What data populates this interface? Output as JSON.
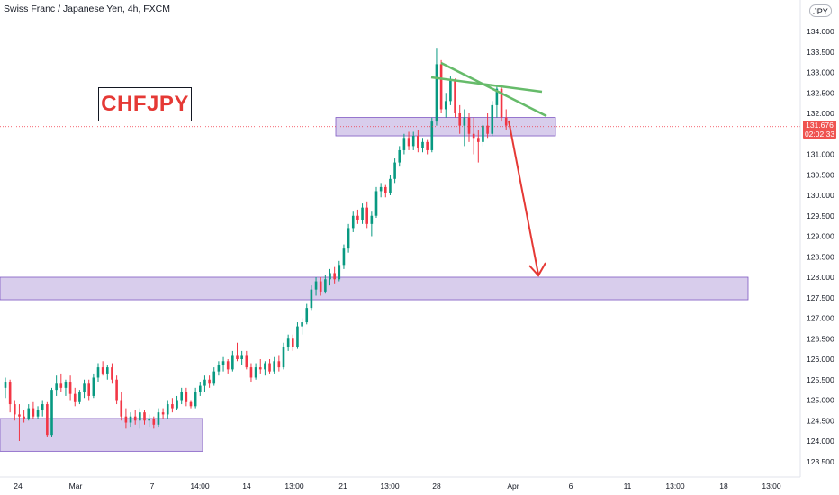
{
  "header": {
    "title": "Swiss Franc / Japanese Yen, 4h, FXCM",
    "currency_badge": "JPY"
  },
  "annotation": {
    "label": "CHFJPY",
    "label_color": "#e53935"
  },
  "price_tag": {
    "price": "131.676",
    "countdown": "02:02:33",
    "color": "#ef5350"
  },
  "colors": {
    "up": "#089981",
    "down": "#f23645",
    "zone_fill": "#d1c4e9",
    "zone_stroke": "#7e57c2",
    "trendline": "#66bb6a",
    "arrow": "#e53935",
    "axis_text": "#131722"
  },
  "chart_data": {
    "type": "candlestick",
    "y_axis": {
      "min": 123.25,
      "max": 134.25,
      "ticks": [
        "123.500",
        "124.000",
        "124.500",
        "125.000",
        "125.500",
        "126.000",
        "126.500",
        "127.000",
        "127.500",
        "128.000",
        "128.500",
        "129.000",
        "129.500",
        "130.000",
        "130.500",
        "131.000",
        "131.500",
        "132.000",
        "132.500",
        "133.000",
        "133.500",
        "134.000"
      ]
    },
    "x_axis": {
      "labels": [
        "24",
        "Mar",
        "7",
        "14:00",
        "14",
        "13:00",
        "21",
        "13:00",
        "28",
        "Apr",
        "6",
        "11",
        "13:00",
        "18",
        "13:00"
      ]
    },
    "current_price": 131.676,
    "zones": [
      {
        "from": 131.45,
        "to": 131.9
      },
      {
        "from": 127.45,
        "to": 128.0
      },
      {
        "from": 123.75,
        "to": 124.55
      }
    ],
    "candles": [
      {
        "o": 125.3,
        "h": 125.55,
        "l": 125.05,
        "c": 125.45
      },
      {
        "o": 125.45,
        "h": 125.5,
        "l": 124.7,
        "c": 124.9
      },
      {
        "o": 124.9,
        "h": 125.0,
        "l": 124.5,
        "c": 124.65
      },
      {
        "o": 124.65,
        "h": 124.9,
        "l": 124.0,
        "c": 124.6
      },
      {
        "o": 124.6,
        "h": 124.75,
        "l": 124.45,
        "c": 124.55
      },
      {
        "o": 124.55,
        "h": 124.9,
        "l": 124.5,
        "c": 124.8
      },
      {
        "o": 124.8,
        "h": 124.95,
        "l": 124.55,
        "c": 124.6
      },
      {
        "o": 124.6,
        "h": 124.85,
        "l": 124.55,
        "c": 124.75
      },
      {
        "o": 124.75,
        "h": 125.0,
        "l": 124.6,
        "c": 124.9
      },
      {
        "o": 124.9,
        "h": 124.95,
        "l": 124.1,
        "c": 124.15
      },
      {
        "o": 124.15,
        "h": 125.3,
        "l": 124.1,
        "c": 125.25
      },
      {
        "o": 125.25,
        "h": 125.6,
        "l": 125.1,
        "c": 125.4
      },
      {
        "o": 125.4,
        "h": 125.65,
        "l": 125.2,
        "c": 125.3
      },
      {
        "o": 125.3,
        "h": 125.5,
        "l": 125.1,
        "c": 125.45
      },
      {
        "o": 125.45,
        "h": 125.6,
        "l": 125.0,
        "c": 125.15
      },
      {
        "o": 125.15,
        "h": 125.3,
        "l": 124.85,
        "c": 124.95
      },
      {
        "o": 124.95,
        "h": 125.25,
        "l": 124.9,
        "c": 125.2
      },
      {
        "o": 125.2,
        "h": 125.5,
        "l": 125.05,
        "c": 125.4
      },
      {
        "o": 125.4,
        "h": 125.5,
        "l": 125.0,
        "c": 125.1
      },
      {
        "o": 125.1,
        "h": 125.65,
        "l": 125.05,
        "c": 125.55
      },
      {
        "o": 125.55,
        "h": 125.9,
        "l": 125.45,
        "c": 125.8
      },
      {
        "o": 125.8,
        "h": 125.95,
        "l": 125.6,
        "c": 125.65
      },
      {
        "o": 125.65,
        "h": 125.85,
        "l": 125.5,
        "c": 125.8
      },
      {
        "o": 125.8,
        "h": 125.9,
        "l": 125.4,
        "c": 125.5
      },
      {
        "o": 125.5,
        "h": 125.6,
        "l": 124.9,
        "c": 125.0
      },
      {
        "o": 125.0,
        "h": 125.2,
        "l": 124.5,
        "c": 124.6
      },
      {
        "o": 124.6,
        "h": 124.8,
        "l": 124.3,
        "c": 124.45
      },
      {
        "o": 124.45,
        "h": 124.7,
        "l": 124.35,
        "c": 124.6
      },
      {
        "o": 124.6,
        "h": 124.75,
        "l": 124.4,
        "c": 124.5
      },
      {
        "o": 124.5,
        "h": 124.8,
        "l": 124.3,
        "c": 124.7
      },
      {
        "o": 124.7,
        "h": 124.75,
        "l": 124.4,
        "c": 124.5
      },
      {
        "o": 124.5,
        "h": 124.65,
        "l": 124.35,
        "c": 124.55
      },
      {
        "o": 124.55,
        "h": 124.6,
        "l": 124.3,
        "c": 124.4
      },
      {
        "o": 124.4,
        "h": 124.8,
        "l": 124.35,
        "c": 124.7
      },
      {
        "o": 124.7,
        "h": 124.8,
        "l": 124.55,
        "c": 124.65
      },
      {
        "o": 124.65,
        "h": 125.0,
        "l": 124.55,
        "c": 124.9
      },
      {
        "o": 124.9,
        "h": 125.05,
        "l": 124.7,
        "c": 124.8
      },
      {
        "o": 124.8,
        "h": 125.1,
        "l": 124.75,
        "c": 125.0
      },
      {
        "o": 125.0,
        "h": 125.3,
        "l": 124.9,
        "c": 125.2
      },
      {
        "o": 125.2,
        "h": 125.3,
        "l": 124.85,
        "c": 124.95
      },
      {
        "o": 124.95,
        "h": 125.0,
        "l": 124.8,
        "c": 124.85
      },
      {
        "o": 124.85,
        "h": 125.3,
        "l": 124.8,
        "c": 125.2
      },
      {
        "o": 125.2,
        "h": 125.45,
        "l": 125.1,
        "c": 125.35
      },
      {
        "o": 125.35,
        "h": 125.6,
        "l": 125.2,
        "c": 125.5
      },
      {
        "o": 125.5,
        "h": 125.6,
        "l": 125.3,
        "c": 125.4
      },
      {
        "o": 125.4,
        "h": 125.8,
        "l": 125.35,
        "c": 125.7
      },
      {
        "o": 125.7,
        "h": 125.95,
        "l": 125.6,
        "c": 125.85
      },
      {
        "o": 125.85,
        "h": 126.05,
        "l": 125.7,
        "c": 125.95
      },
      {
        "o": 125.95,
        "h": 126.0,
        "l": 125.65,
        "c": 125.75
      },
      {
        "o": 125.75,
        "h": 126.2,
        "l": 125.7,
        "c": 126.1
      },
      {
        "o": 126.1,
        "h": 126.4,
        "l": 125.95,
        "c": 126.0
      },
      {
        "o": 126.0,
        "h": 126.2,
        "l": 125.85,
        "c": 126.1
      },
      {
        "o": 126.1,
        "h": 126.2,
        "l": 125.75,
        "c": 125.8
      },
      {
        "o": 125.8,
        "h": 125.9,
        "l": 125.45,
        "c": 125.55
      },
      {
        "o": 125.55,
        "h": 125.9,
        "l": 125.5,
        "c": 125.8
      },
      {
        "o": 125.8,
        "h": 126.0,
        "l": 125.65,
        "c": 125.75
      },
      {
        "o": 125.75,
        "h": 125.95,
        "l": 125.6,
        "c": 125.9
      },
      {
        "o": 125.9,
        "h": 126.0,
        "l": 125.65,
        "c": 125.7
      },
      {
        "o": 125.7,
        "h": 126.05,
        "l": 125.65,
        "c": 125.95
      },
      {
        "o": 125.95,
        "h": 126.1,
        "l": 125.7,
        "c": 125.8
      },
      {
        "o": 125.8,
        "h": 126.4,
        "l": 125.75,
        "c": 126.3
      },
      {
        "o": 126.3,
        "h": 126.6,
        "l": 126.2,
        "c": 126.5
      },
      {
        "o": 126.5,
        "h": 126.6,
        "l": 126.2,
        "c": 126.3
      },
      {
        "o": 126.3,
        "h": 126.9,
        "l": 126.25,
        "c": 126.8
      },
      {
        "o": 126.8,
        "h": 127.0,
        "l": 126.6,
        "c": 126.9
      },
      {
        "o": 126.9,
        "h": 127.35,
        "l": 126.85,
        "c": 127.25
      },
      {
        "o": 127.25,
        "h": 127.8,
        "l": 127.2,
        "c": 127.7
      },
      {
        "o": 127.7,
        "h": 128.0,
        "l": 127.55,
        "c": 127.9
      },
      {
        "o": 127.9,
        "h": 128.0,
        "l": 127.55,
        "c": 127.65
      },
      {
        "o": 127.65,
        "h": 128.05,
        "l": 127.6,
        "c": 127.95
      },
      {
        "o": 127.95,
        "h": 128.2,
        "l": 127.8,
        "c": 128.1
      },
      {
        "o": 128.1,
        "h": 128.25,
        "l": 127.85,
        "c": 127.95
      },
      {
        "o": 127.95,
        "h": 128.4,
        "l": 127.9,
        "c": 128.3
      },
      {
        "o": 128.3,
        "h": 128.8,
        "l": 128.2,
        "c": 128.7
      },
      {
        "o": 128.7,
        "h": 129.3,
        "l": 128.6,
        "c": 129.2
      },
      {
        "o": 129.2,
        "h": 129.6,
        "l": 129.1,
        "c": 129.5
      },
      {
        "o": 129.5,
        "h": 129.65,
        "l": 129.3,
        "c": 129.4
      },
      {
        "o": 129.4,
        "h": 129.8,
        "l": 129.3,
        "c": 129.7
      },
      {
        "o": 129.7,
        "h": 129.85,
        "l": 129.2,
        "c": 129.3
      },
      {
        "o": 129.3,
        "h": 129.6,
        "l": 129.0,
        "c": 129.5
      },
      {
        "o": 129.5,
        "h": 130.2,
        "l": 129.45,
        "c": 130.1
      },
      {
        "o": 130.1,
        "h": 130.3,
        "l": 129.95,
        "c": 130.2
      },
      {
        "o": 130.2,
        "h": 130.25,
        "l": 129.95,
        "c": 130.05
      },
      {
        "o": 130.05,
        "h": 130.5,
        "l": 130.0,
        "c": 130.4
      },
      {
        "o": 130.4,
        "h": 130.9,
        "l": 130.3,
        "c": 130.8
      },
      {
        "o": 130.8,
        "h": 131.2,
        "l": 130.7,
        "c": 131.1
      },
      {
        "o": 131.1,
        "h": 131.5,
        "l": 131.0,
        "c": 131.4
      },
      {
        "o": 131.4,
        "h": 131.55,
        "l": 131.1,
        "c": 131.2
      },
      {
        "o": 131.2,
        "h": 131.55,
        "l": 131.1,
        "c": 131.45
      },
      {
        "o": 131.45,
        "h": 131.6,
        "l": 131.05,
        "c": 131.15
      },
      {
        "o": 131.15,
        "h": 131.4,
        "l": 131.05,
        "c": 131.3
      },
      {
        "o": 131.3,
        "h": 131.35,
        "l": 131.0,
        "c": 131.1
      },
      {
        "o": 131.1,
        "h": 131.9,
        "l": 131.05,
        "c": 131.8
      },
      {
        "o": 131.8,
        "h": 133.6,
        "l": 131.7,
        "c": 133.2
      },
      {
        "o": 133.2,
        "h": 133.3,
        "l": 132.0,
        "c": 132.1
      },
      {
        "o": 132.1,
        "h": 132.5,
        "l": 131.9,
        "c": 132.3
      },
      {
        "o": 132.3,
        "h": 132.9,
        "l": 132.2,
        "c": 132.8
      },
      {
        "o": 132.8,
        "h": 132.85,
        "l": 131.9,
        "c": 132.0
      },
      {
        "o": 132.0,
        "h": 132.2,
        "l": 131.5,
        "c": 131.7
      },
      {
        "o": 131.7,
        "h": 132.1,
        "l": 131.2,
        "c": 131.9
      },
      {
        "o": 131.9,
        "h": 132.0,
        "l": 131.3,
        "c": 131.5
      },
      {
        "o": 131.5,
        "h": 131.9,
        "l": 131.0,
        "c": 131.4
      },
      {
        "o": 131.4,
        "h": 131.6,
        "l": 130.8,
        "c": 131.3
      },
      {
        "o": 131.3,
        "h": 131.8,
        "l": 131.2,
        "c": 131.7
      },
      {
        "o": 131.7,
        "h": 132.0,
        "l": 131.4,
        "c": 131.5
      },
      {
        "o": 131.5,
        "h": 132.3,
        "l": 131.45,
        "c": 132.2
      },
      {
        "o": 132.2,
        "h": 132.7,
        "l": 131.9,
        "c": 132.6
      },
      {
        "o": 132.6,
        "h": 132.65,
        "l": 131.8,
        "c": 131.9
      },
      {
        "o": 131.9,
        "h": 132.1,
        "l": 131.6,
        "c": 131.7
      }
    ]
  }
}
